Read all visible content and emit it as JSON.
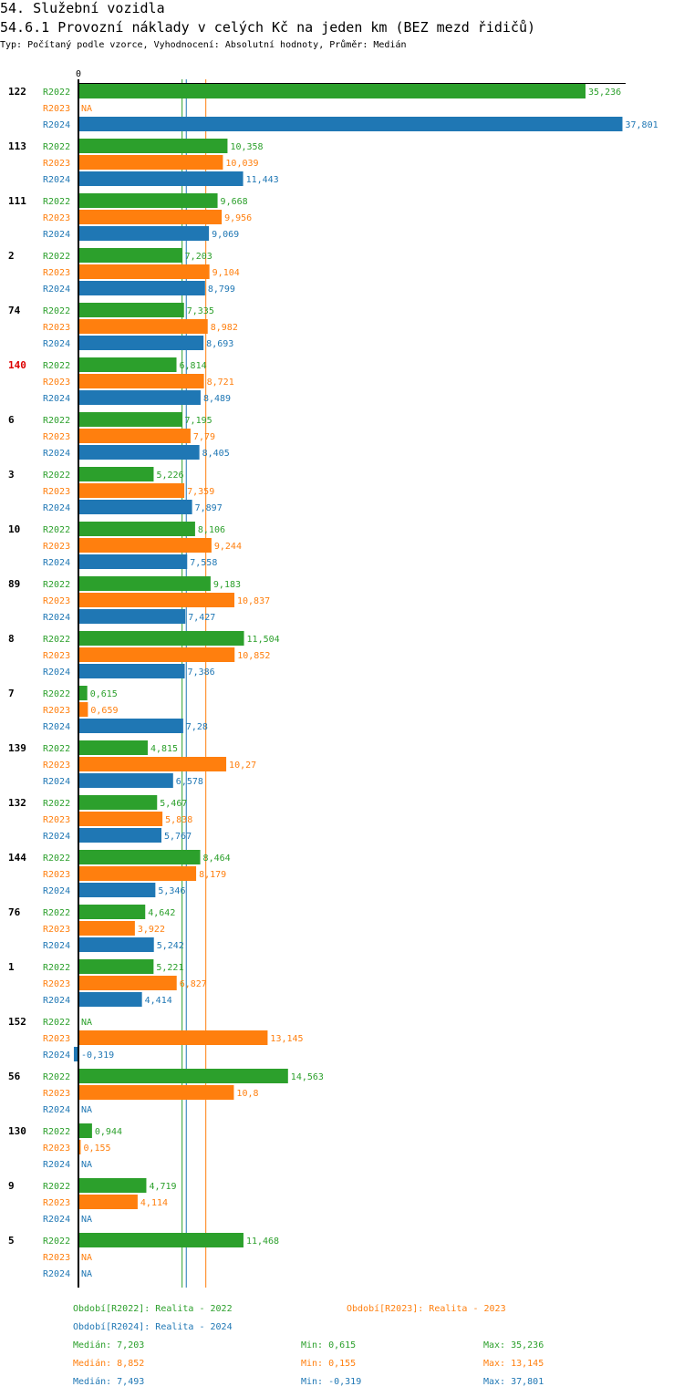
{
  "header": {
    "title": "54. Služební vozidla",
    "subtitle": "54.6.1 Provozní náklady v celých Kč na jeden km (BEZ mezd řidičů)",
    "meta": "Typ: Počítaný podle vzorce, Vyhodnocení: Absolutní hodnoty, Průměr: Medián"
  },
  "colors": {
    "R2022": "#2ca02c",
    "R2023": "#ff7f0e",
    "R2024": "#1f77b4",
    "highlight": "#dd0000",
    "axis": "#000000"
  },
  "chart_data": {
    "type": "bar",
    "orientation": "horizontal",
    "title": "54.6.1 Provozní náklady v celých Kč na jeden km (BEZ mezd řidičů)",
    "axis_zero_label": "0",
    "xlim": [
      -0.319,
      37.801
    ],
    "series_labels": [
      "R2022",
      "R2023",
      "R2024"
    ],
    "na_label": "NA",
    "highlight_group": "140",
    "groups": [
      {
        "id": "122",
        "values": [
          "35,236",
          "NA",
          "37,801"
        ]
      },
      {
        "id": "113",
        "values": [
          "10,358",
          "10,039",
          "11,443"
        ]
      },
      {
        "id": "111",
        "values": [
          "9,668",
          "9,956",
          "9,069"
        ]
      },
      {
        "id": "2",
        "values": [
          "7,203",
          "9,104",
          "8,799"
        ]
      },
      {
        "id": "74",
        "values": [
          "7,335",
          "8,982",
          "8,693"
        ]
      },
      {
        "id": "140",
        "values": [
          "6,814",
          "8,721",
          "8,489"
        ]
      },
      {
        "id": "6",
        "values": [
          "7,195",
          "7,79",
          "8,405"
        ]
      },
      {
        "id": "3",
        "values": [
          "5,226",
          "7,359",
          "7,897"
        ]
      },
      {
        "id": "10",
        "values": [
          "8,106",
          "9,244",
          "7,558"
        ]
      },
      {
        "id": "89",
        "values": [
          "9,183",
          "10,837",
          "7,427"
        ]
      },
      {
        "id": "8",
        "values": [
          "11,504",
          "10,852",
          "7,386"
        ]
      },
      {
        "id": "7",
        "values": [
          "0,615",
          "0,659",
          "7,28"
        ]
      },
      {
        "id": "139",
        "values": [
          "4,815",
          "10,27",
          "6,578"
        ]
      },
      {
        "id": "132",
        "values": [
          "5,467",
          "5,838",
          "5,767"
        ]
      },
      {
        "id": "144",
        "values": [
          "8,464",
          "8,179",
          "5,346"
        ]
      },
      {
        "id": "76",
        "values": [
          "4,642",
          "3,922",
          "5,242"
        ]
      },
      {
        "id": "1",
        "values": [
          "5,221",
          "6,827",
          "4,414"
        ]
      },
      {
        "id": "152",
        "values": [
          "NA",
          "13,145",
          "-0,319"
        ]
      },
      {
        "id": "56",
        "values": [
          "14,563",
          "10,8",
          "NA"
        ]
      },
      {
        "id": "130",
        "values": [
          "0,944",
          "0,155",
          "NA"
        ]
      },
      {
        "id": "9",
        "values": [
          "4,719",
          "4,114",
          "NA"
        ]
      },
      {
        "id": "5",
        "values": [
          "11,468",
          "NA",
          "NA"
        ]
      }
    ],
    "medians": {
      "R2022": 7.203,
      "R2023": 8.852,
      "R2024": 7.493
    },
    "legend": [
      {
        "series": "R2022",
        "text": "Období[R2022]: Realita - 2022"
      },
      {
        "series": "R2023",
        "text": "Období[R2023]: Realita - 2023"
      },
      {
        "series": "R2024",
        "text": "Období[R2024]: Realita - 2024"
      }
    ],
    "stats": [
      {
        "series": "R2022",
        "median": "Medián: 7,203",
        "min": "Min: 0,615",
        "max": "Max: 35,236"
      },
      {
        "series": "R2023",
        "median": "Medián: 8,852",
        "min": "Min: 0,155",
        "max": "Max: 13,145"
      },
      {
        "series": "R2024",
        "median": "Medián: 7,493",
        "min": "Min: -0,319",
        "max": "Max: 37,801"
      }
    ]
  }
}
